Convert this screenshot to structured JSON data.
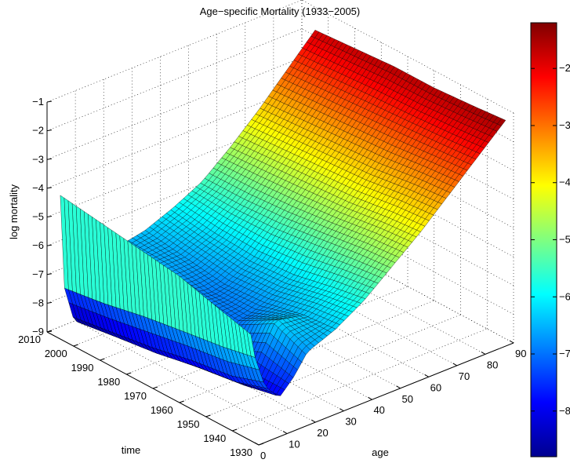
{
  "chart_data": {
    "type": "surface",
    "title": "Age−specific Mortality (1933−2005)",
    "xlabel": "age",
    "ylabel": "time",
    "zlabel": "log mortality",
    "xlim": [
      0,
      90
    ],
    "ylim": [
      1930,
      2010
    ],
    "zlim": [
      -9,
      -1
    ],
    "x_ticks": [
      "0",
      "10",
      "20",
      "30",
      "40",
      "50",
      "60",
      "70",
      "80",
      "90"
    ],
    "y_ticks": [
      "1930",
      "1940",
      "1950",
      "1960",
      "1970",
      "1980",
      "1990",
      "2000",
      "2010"
    ],
    "z_ticks": [
      "−9",
      "−8",
      "−7",
      "−6",
      "−5",
      "−4",
      "−3",
      "−2",
      "−1"
    ],
    "grid": true,
    "colormap": "jet",
    "colorbar": {
      "ticks": [
        "−8",
        "−7",
        "−6",
        "−5",
        "−4",
        "−3",
        "−2"
      ],
      "range": [
        -8.8,
        -1.2
      ]
    },
    "series": [
      {
        "year": 1933,
        "age": [
          0,
          1,
          5,
          10,
          15,
          20,
          25,
          30,
          40,
          50,
          60,
          70,
          80,
          90
        ],
        "log_mortality": [
          -5.3,
          -6.0,
          -7.3,
          -7.9,
          -7.4,
          -6.7,
          -6.5,
          -6.3,
          -5.7,
          -4.9,
          -4.1,
          -3.2,
          -2.3,
          -1.4
        ]
      },
      {
        "year": 1945,
        "age": [
          0,
          1,
          5,
          10,
          15,
          20,
          25,
          30,
          40,
          50,
          60,
          70,
          80,
          90
        ],
        "log_mortality": [
          -5.0,
          -6.2,
          -7.7,
          -8.1,
          -7.1,
          -6.2,
          -6.3,
          -6.4,
          -5.9,
          -5.0,
          -4.2,
          -3.3,
          -2.4,
          -1.5
        ]
      },
      {
        "year": 1960,
        "age": [
          0,
          1,
          5,
          10,
          15,
          20,
          25,
          30,
          40,
          50,
          60,
          70,
          80,
          90
        ],
        "log_mortality": [
          -4.6,
          -6.4,
          -7.9,
          -8.3,
          -7.7,
          -7.0,
          -6.9,
          -6.7,
          -6.2,
          -5.2,
          -4.4,
          -3.5,
          -2.5,
          -1.6
        ]
      },
      {
        "year": 1975,
        "age": [
          0,
          1,
          5,
          10,
          15,
          20,
          25,
          30,
          40,
          50,
          60,
          70,
          80,
          90
        ],
        "log_mortality": [
          -4.4,
          -6.6,
          -8.2,
          -8.5,
          -7.6,
          -6.8,
          -6.9,
          -6.8,
          -6.3,
          -5.4,
          -4.5,
          -3.6,
          -2.6,
          -1.6
        ]
      },
      {
        "year": 1990,
        "age": [
          0,
          1,
          5,
          10,
          15,
          20,
          25,
          30,
          40,
          50,
          60,
          70,
          80,
          90
        ],
        "log_mortality": [
          -4.2,
          -6.9,
          -8.4,
          -8.6,
          -7.5,
          -6.6,
          -6.6,
          -6.6,
          -6.2,
          -5.5,
          -4.6,
          -3.7,
          -2.7,
          -1.7
        ]
      },
      {
        "year": 2005,
        "age": [
          0,
          1,
          5,
          10,
          15,
          20,
          25,
          30,
          40,
          50,
          60,
          70,
          80,
          90
        ],
        "log_mortality": [
          -4.0,
          -7.1,
          -8.6,
          -8.8,
          -7.5,
          -6.6,
          -6.5,
          -6.4,
          -6.0,
          -5.5,
          -4.7,
          -3.8,
          -2.8,
          -1.8
        ]
      }
    ]
  }
}
